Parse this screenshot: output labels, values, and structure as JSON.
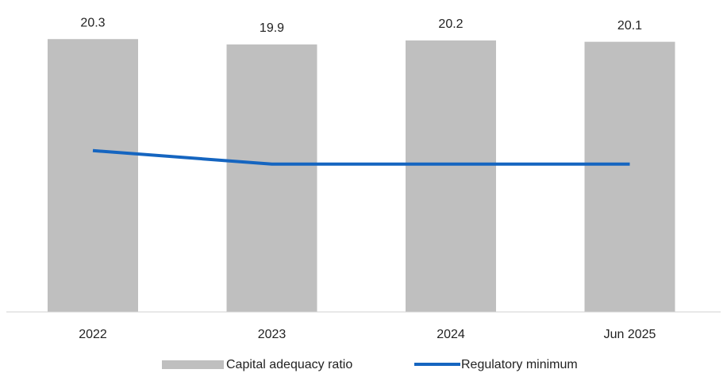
{
  "chart_data": {
    "type": "combo",
    "categories": [
      "2022",
      "2023",
      "2024",
      "Jun 2025"
    ],
    "series": [
      {
        "name": "Capital adequacy ratio",
        "type": "bar",
        "color": "#bfbfbf",
        "values": [
          20.3,
          19.9,
          20.2,
          20.1
        ]
      },
      {
        "name": "Regulatory minimum",
        "type": "line",
        "color": "#1565c0",
        "values": [
          12,
          11,
          11,
          11
        ]
      }
    ],
    "ylim": [
      0,
      22.5
    ],
    "legend": "bottom"
  }
}
